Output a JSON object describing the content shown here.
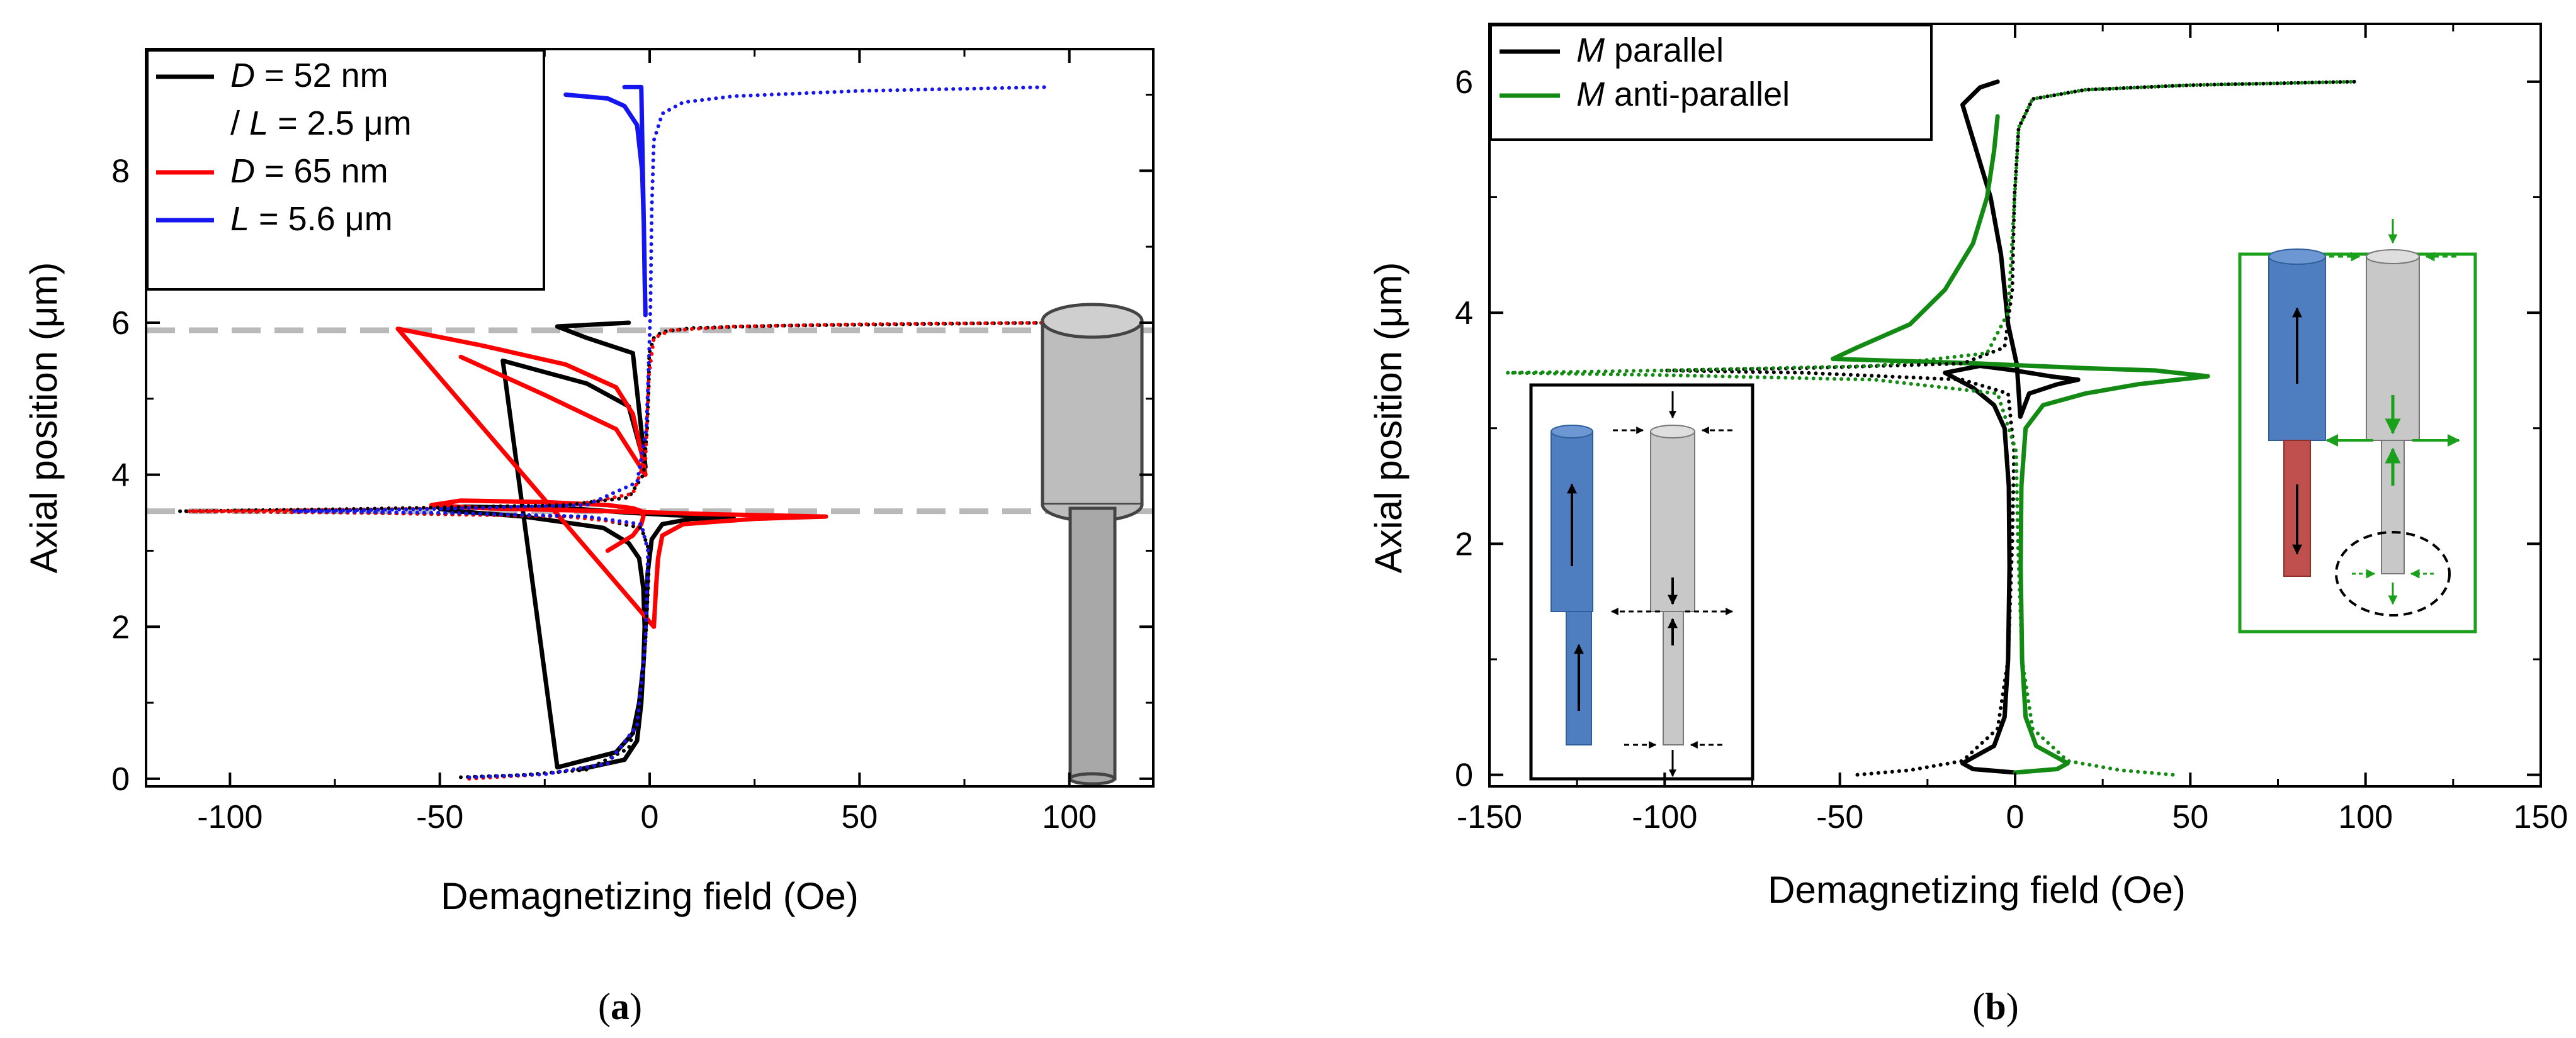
{
  "colors": {
    "black": "#000000",
    "red": "#ff0000",
    "blue": "#1515ee",
    "green": "#138a13",
    "dashed_gray": "#b9b9b9",
    "cylinder_gray": "#bdbdbd",
    "cylinder_blue": "#4f7ec0",
    "cylinder_red": "#c0504d",
    "inset_green": "#1aa01a"
  },
  "chart_data": [
    {
      "type": "line",
      "panel": "a",
      "caption_open": "(",
      "caption_letter": "a",
      "caption_close": ")",
      "xlabel": "Demagnetizing field (Oe)",
      "ylabel": "Axial position (μm)",
      "xlim": [
        -120,
        120
      ],
      "ylim": [
        -0.1,
        9.6
      ],
      "xticks": [
        -100,
        -50,
        0,
        50,
        100
      ],
      "xtick_labels": [
        "-100",
        "-50",
        "0",
        "50",
        "100"
      ],
      "yticks": [
        0,
        2,
        4,
        6,
        8
      ],
      "ytick_labels": [
        "0",
        "2",
        "4",
        "6",
        "8"
      ],
      "legend_position": "top-left",
      "legend": [
        {
          "parts": [
            {
              "t": "D",
              "i": true
            },
            {
              "t": " = 52 nm",
              "i": false
            }
          ],
          "color": "#000000",
          "line": true
        },
        {
          "parts": [
            {
              "t": "/ ",
              "i": false
            },
            {
              "t": "L",
              "i": true
            },
            {
              "t": " = 2.5 μm",
              "i": false
            }
          ],
          "color": "#000000",
          "line": false
        },
        {
          "parts": [
            {
              "t": "D",
              "i": true
            },
            {
              "t": " = 65 nm",
              "i": false
            }
          ],
          "color": "#ff0000",
          "line": true
        },
        {
          "parts": [
            {
              "t": "L",
              "i": true
            },
            {
              "t": " = 5.6 μm",
              "i": false
            }
          ],
          "color": "#1515ee",
          "line": true
        }
      ],
      "reference_lines_y": [
        5.9,
        3.52
      ],
      "series": [
        {
          "name": "D = 52 nm / L = 2.5 μm (solid)",
          "color": "#000000",
          "style": "solid",
          "x": [
            -17,
            -6,
            -3,
            -2,
            -1.5,
            -1.2,
            -1.5,
            -2.5,
            -5,
            -11,
            -30,
            -46,
            -50,
            -44,
            -17,
            -5,
            5,
            20,
            10,
            3,
            0.5,
            -0.5,
            -0.8,
            -1.5,
            -2.5,
            -4,
            -8,
            -22,
            -35,
            -15,
            -5,
            -3,
            -1,
            -4,
            -15,
            -22,
            -5
          ],
          "y": [
            0.12,
            0.25,
            0.5,
            1.0,
            1.5,
            2.0,
            2.5,
            2.9,
            3.1,
            3.3,
            3.45,
            3.52,
            3.55,
            3.58,
            3.55,
            3.5,
            3.47,
            3.44,
            3.42,
            3.35,
            3.15,
            2.7,
            2.2,
            1.5,
            1.0,
            0.6,
            0.35,
            0.15,
            5.5,
            5.2,
            4.9,
            4.5,
            4.1,
            5.6,
            5.8,
            5.95,
            6.0
          ]
        },
        {
          "name": "D = 65 nm (solid)",
          "color": "#ff0000",
          "style": "solid",
          "x": [
            -10,
            -4,
            -2,
            -1.5,
            -2,
            -4,
            -10,
            -25,
            -45,
            -52,
            -40,
            -10,
            15,
            42,
            25,
            8,
            3,
            2,
            1.5,
            1.2,
            1.0,
            -60,
            -40,
            -20,
            -8,
            -4,
            -2,
            -1,
            -8,
            -25,
            -45
          ],
          "y": [
            3.0,
            3.2,
            3.35,
            3.45,
            3.52,
            3.56,
            3.6,
            3.64,
            3.66,
            3.6,
            3.56,
            3.52,
            3.48,
            3.45,
            3.42,
            3.35,
            3.2,
            2.9,
            2.5,
            2.2,
            2.0,
            5.92,
            5.7,
            5.45,
            5.15,
            4.8,
            4.3,
            4.0,
            4.6,
            5.05,
            5.55
          ]
        },
        {
          "name": "L = 5.6 μm (solid)",
          "color": "#1515ee",
          "style": "solid",
          "x": [
            -20,
            -10,
            -6,
            -3,
            -1.8,
            -1.4,
            -1.2,
            -1.0,
            -2,
            -6
          ],
          "y": [
            9.0,
            8.95,
            8.85,
            8.6,
            8.0,
            7.3,
            6.6,
            6.1,
            9.1,
            9.1
          ]
        },
        {
          "name": "D = 52 nm / L = 2.5 μm (dotted)",
          "color": "#000000",
          "style": "dotted",
          "x": [
            -45,
            -30,
            -15,
            -5,
            -2,
            -0.8,
            -0.3,
            -0.1,
            -2,
            -15,
            -70,
            -112,
            -70,
            -20,
            -5,
            -1.5,
            -0.6,
            -0.2,
            -0.1,
            1,
            3,
            10,
            30,
            60,
            95
          ],
          "y": [
            0.02,
            0.05,
            0.12,
            0.4,
            1.0,
            2.0,
            2.6,
            3.0,
            3.3,
            3.45,
            3.5,
            3.52,
            3.55,
            3.6,
            3.7,
            4.0,
            4.6,
            5.2,
            5.6,
            5.8,
            5.88,
            5.93,
            5.96,
            5.98,
            6.0
          ]
        },
        {
          "name": "D = 65 nm (dotted)",
          "color": "#ff0000",
          "style": "dotted",
          "x": [
            -43,
            -25,
            -10,
            -3,
            -1,
            -0.4,
            -2,
            -20,
            -70,
            -110,
            -70,
            -20,
            -4,
            -1,
            -0.2,
            1,
            5,
            20,
            50,
            95
          ],
          "y": [
            0.0,
            0.06,
            0.2,
            0.7,
            1.8,
            3.0,
            3.35,
            3.45,
            3.5,
            3.52,
            3.54,
            3.58,
            3.75,
            4.2,
            5.3,
            5.8,
            5.9,
            5.95,
            5.98,
            6.0
          ]
        },
        {
          "name": "L = 5.6 μm (dotted)",
          "color": "#1515ee",
          "style": "dotted",
          "x": [
            -43,
            -25,
            -10,
            -3,
            -1,
            -0.4,
            -2,
            -15,
            -50,
            -85,
            -50,
            -15,
            -3,
            -0.8,
            -0.2,
            0.2,
            0.5,
            1,
            3,
            8,
            20,
            50,
            95
          ],
          "y": [
            0.02,
            0.06,
            0.2,
            0.7,
            1.8,
            3.0,
            3.35,
            3.45,
            3.5,
            3.52,
            3.55,
            3.6,
            3.9,
            4.6,
            5.5,
            6.2,
            7.5,
            8.4,
            8.75,
            8.9,
            8.98,
            9.05,
            9.1
          ]
        }
      ]
    },
    {
      "type": "line",
      "panel": "b",
      "caption_open": "(",
      "caption_letter": "b",
      "caption_close": ")",
      "xlabel": "Demagnetizing field (Oe)",
      "ylabel": "Axial position (μm)",
      "xlim": [
        -150,
        150
      ],
      "ylim": [
        -0.1,
        6.5
      ],
      "xticks": [
        -150,
        -100,
        -50,
        0,
        50,
        100,
        150
      ],
      "xtick_labels": [
        "-150",
        "-100",
        "-50",
        "0",
        "50",
        "100",
        "150"
      ],
      "yticks": [
        0,
        2,
        4,
        6
      ],
      "ytick_labels": [
        "0",
        "2",
        "4",
        "6"
      ],
      "legend_position": "top-left",
      "legend": [
        {
          "parts": [
            {
              "t": "M",
              "i": true
            },
            {
              "t": " parallel",
              "i": false
            }
          ],
          "color": "#000000",
          "line": true
        },
        {
          "parts": [
            {
              "t": "M",
              "i": true
            },
            {
              "t": " anti-parallel",
              "i": false
            }
          ],
          "color": "#138a13",
          "line": true
        }
      ],
      "series": [
        {
          "name": "M parallel (solid)",
          "color": "#000000",
          "style": "solid",
          "x": [
            0,
            -12,
            -15,
            -6,
            -3,
            -2,
            -1.6,
            -1.8,
            -3,
            -6,
            -12,
            -20,
            -10,
            0,
            10,
            18,
            12,
            4,
            1.5,
            0.5,
            -2,
            -4,
            -7,
            -12,
            -15,
            -10,
            -5
          ],
          "y": [
            0.02,
            0.05,
            0.1,
            0.25,
            0.5,
            1.0,
            1.8,
            2.5,
            3.0,
            3.2,
            3.35,
            3.48,
            3.54,
            3.5,
            3.45,
            3.42,
            3.38,
            3.3,
            3.1,
            3.55,
            3.9,
            4.5,
            5.0,
            5.5,
            5.8,
            5.95,
            6.0
          ]
        },
        {
          "name": "M anti-parallel (solid)",
          "color": "#138a13",
          "style": "solid",
          "x": [
            0,
            12,
            15,
            6,
            3,
            2,
            1.6,
            1.8,
            3,
            8,
            20,
            35,
            55,
            40,
            20,
            5,
            -10,
            -30,
            -52,
            -45,
            -30,
            -20,
            -12,
            -8,
            -6,
            -5
          ],
          "y": [
            0.02,
            0.05,
            0.1,
            0.25,
            0.5,
            1.0,
            1.8,
            2.5,
            3.0,
            3.2,
            3.3,
            3.38,
            3.45,
            3.5,
            3.52,
            3.54,
            3.56,
            3.58,
            3.6,
            3.7,
            3.9,
            4.2,
            4.6,
            5.0,
            5.4,
            5.7
          ]
        },
        {
          "name": "M parallel (dotted)",
          "color": "#000000",
          "style": "dotted",
          "x": [
            -45,
            -30,
            -15,
            -5,
            -2,
            -0.8,
            -0.3,
            -2,
            -15,
            -60,
            -100,
            -60,
            -15,
            -3,
            -0.8,
            -0.2,
            1,
            5,
            20,
            50,
            97
          ],
          "y": [
            0.0,
            0.04,
            0.12,
            0.4,
            1.0,
            2.0,
            2.8,
            3.3,
            3.42,
            3.48,
            3.5,
            3.52,
            3.56,
            3.7,
            4.2,
            5.0,
            5.6,
            5.85,
            5.93,
            5.97,
            6.0
          ]
        },
        {
          "name": "M anti-parallel (dotted)",
          "color": "#138a13",
          "style": "dotted",
          "x": [
            45,
            30,
            15,
            5,
            2,
            0.8,
            0.3,
            -5,
            -40,
            -100,
            -145,
            -100,
            -40,
            -8,
            -2,
            -0.5,
            1,
            5,
            20,
            50,
            97
          ],
          "y": [
            0.0,
            0.04,
            0.12,
            0.4,
            1.0,
            2.0,
            2.8,
            3.3,
            3.42,
            3.46,
            3.48,
            3.5,
            3.54,
            3.65,
            4.0,
            4.8,
            5.6,
            5.85,
            5.93,
            5.97,
            6.0
          ]
        }
      ]
    }
  ]
}
